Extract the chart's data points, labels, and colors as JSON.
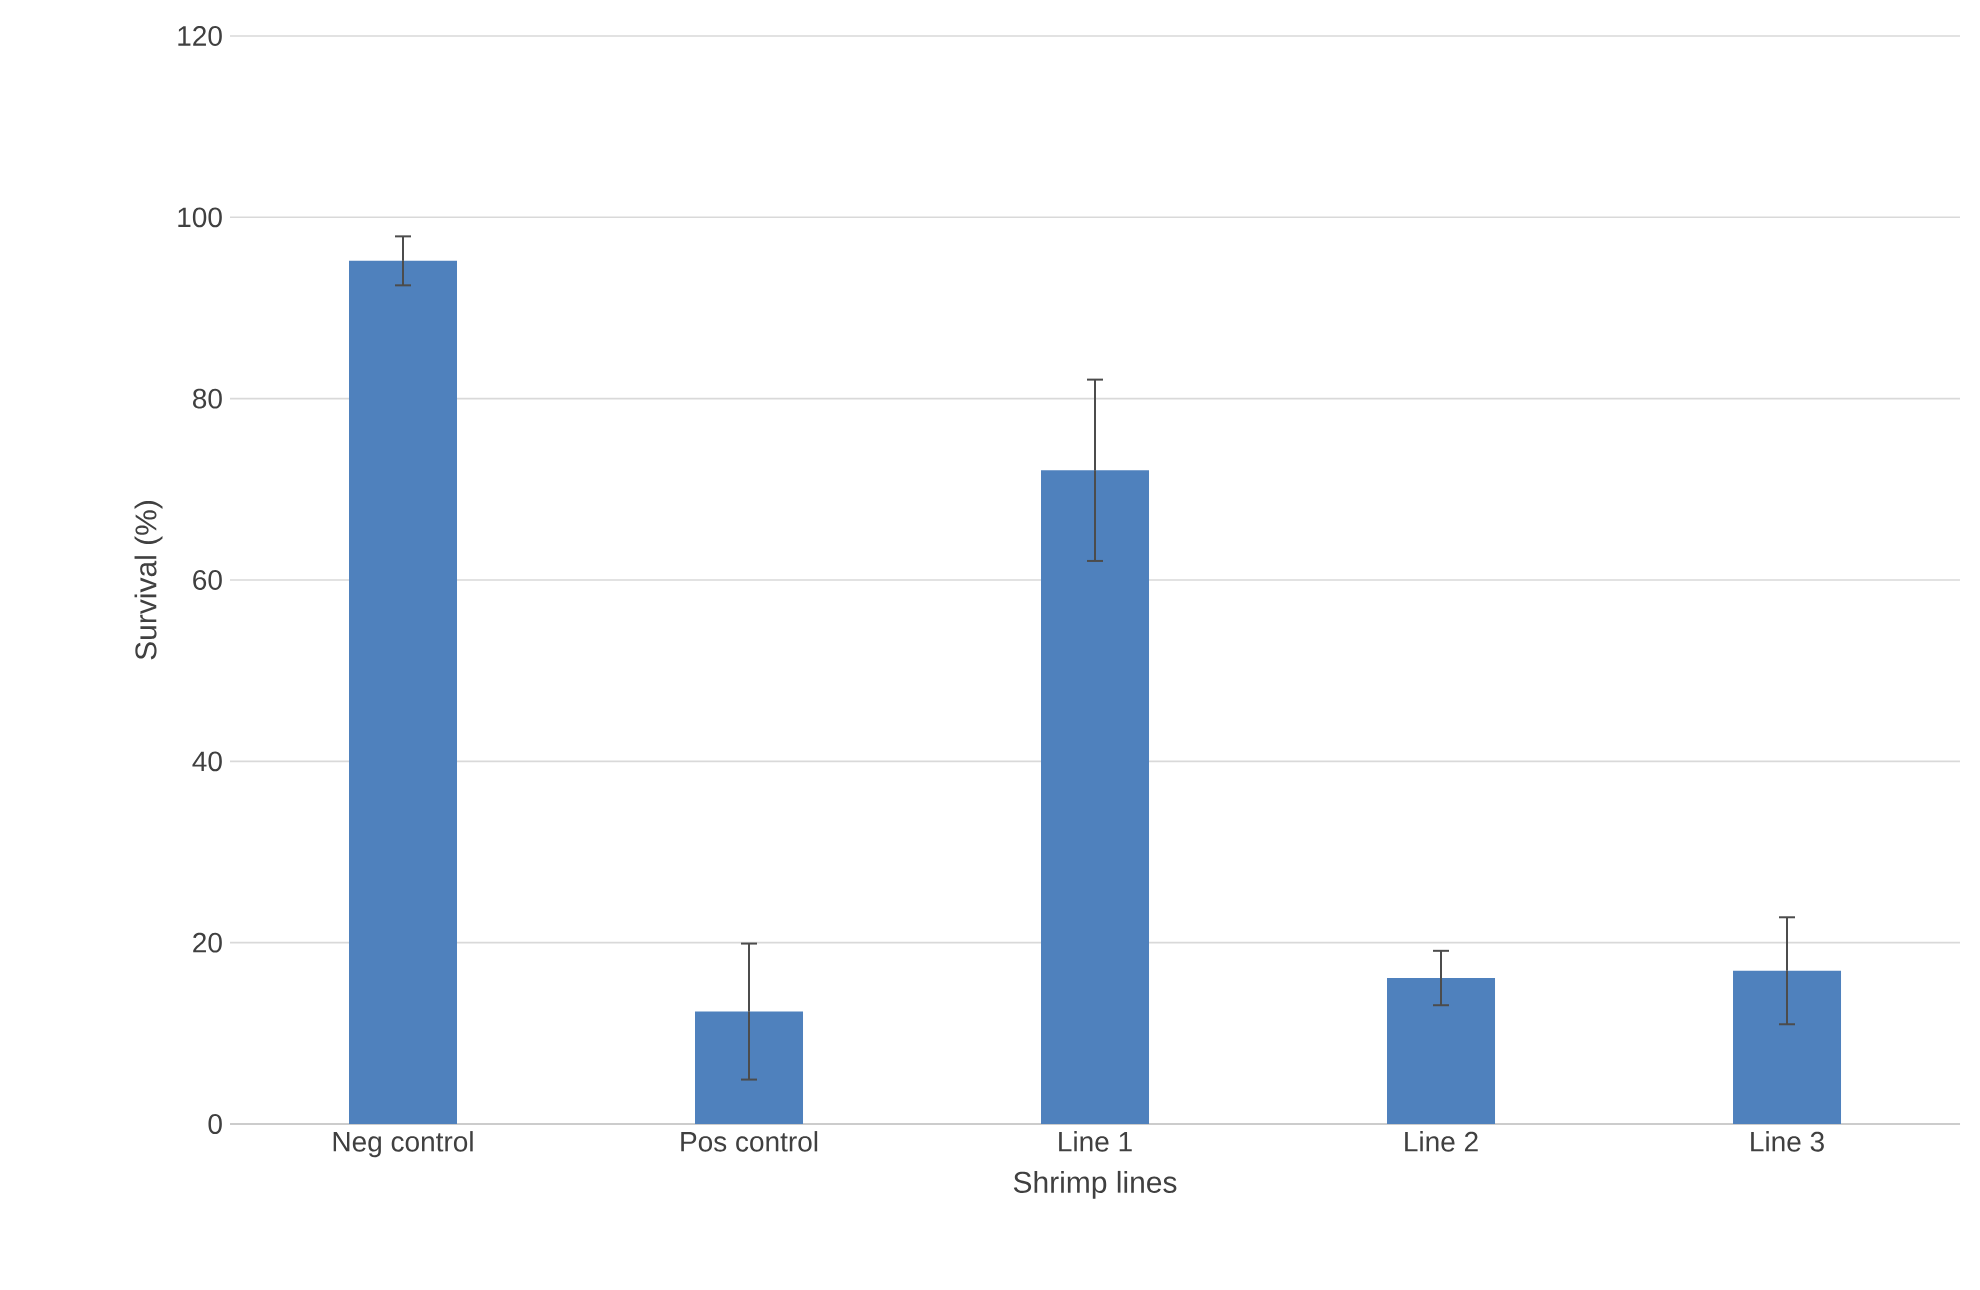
{
  "chart_data": {
    "type": "bar",
    "xlabel": "Shrimp lines",
    "ylabel": "Survival (%)",
    "categories": [
      "Neg control",
      "Pos control",
      "Line 1",
      "Line 2",
      "Line 3"
    ],
    "values": [
      95.2,
      12.4,
      72.1,
      16.1,
      16.9
    ],
    "errors": [
      2.7,
      7.5,
      10,
      3,
      5.9
    ],
    "color": "#4f81bd",
    "ylim": [
      0,
      120
    ],
    "yticks": [
      0,
      20,
      40,
      60,
      80,
      100,
      120
    ],
    "grid": "y"
  }
}
